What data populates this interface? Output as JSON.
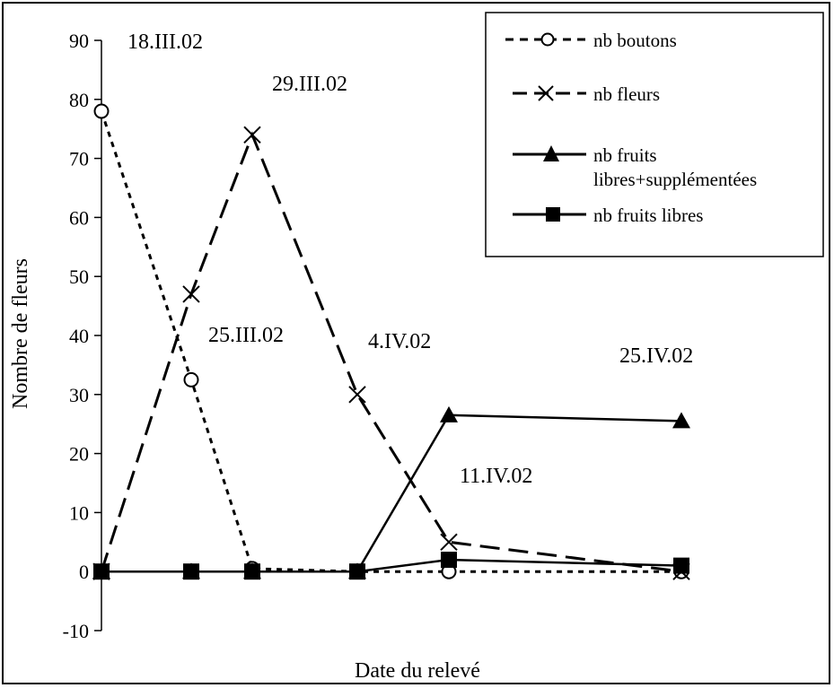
{
  "chart_data": {
    "type": "line",
    "xlabel": "Date du relevé",
    "ylabel": "Nombre de fleurs",
    "ylim": [
      -10,
      90
    ],
    "yticks": [
      90,
      80,
      70,
      60,
      50,
      40,
      30,
      20,
      10,
      0,
      -10
    ],
    "grid": false,
    "legend_position": "top-right",
    "date_labels": [
      "18.III.02",
      "29.III.02",
      "25.III.02",
      "4.IV.02",
      "11.IV.02",
      "25.IV.02"
    ],
    "series": [
      {
        "name": "nb boutons",
        "style": "dotted",
        "marker": "circle-open",
        "points": [
          [
            0,
            78
          ],
          [
            1,
            32.5
          ],
          [
            2,
            0.5
          ],
          [
            3,
            0
          ],
          [
            4,
            0
          ],
          [
            5,
            0
          ]
        ]
      },
      {
        "name": "nb fleurs",
        "style": "dashed",
        "marker": "x",
        "points": [
          [
            0,
            0
          ],
          [
            1,
            47
          ],
          [
            2,
            74
          ],
          [
            3,
            30
          ],
          [
            4,
            5
          ],
          [
            5,
            0
          ]
        ]
      },
      {
        "name": "nb fruits\nlibres+supplémentées",
        "style": "solid",
        "marker": "triangle",
        "points": [
          [
            0,
            0
          ],
          [
            1,
            0
          ],
          [
            2,
            0
          ],
          [
            3,
            0
          ],
          [
            4,
            26.5
          ],
          [
            5,
            25.5
          ]
        ]
      },
      {
        "name": "nb fruits libres",
        "style": "solid",
        "marker": "square",
        "points": [
          [
            0,
            0
          ],
          [
            1,
            0
          ],
          [
            2,
            0
          ],
          [
            3,
            0
          ],
          [
            4,
            2
          ],
          [
            5,
            1
          ]
        ]
      }
    ]
  },
  "legend": {
    "item0": "nb boutons",
    "item1": "nb fleurs",
    "item2_line1": "nb fruits",
    "item2_line2": "libres+supplémentées",
    "item3": "nb fruits libres"
  }
}
